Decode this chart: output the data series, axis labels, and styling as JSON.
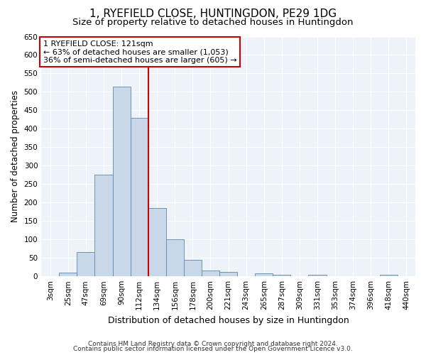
{
  "title1": "1, RYEFIELD CLOSE, HUNTINGDON, PE29 1DG",
  "title2": "Size of property relative to detached houses in Huntingdon",
  "xlabel": "Distribution of detached houses by size in Huntingdon",
  "ylabel": "Number of detached properties",
  "footer1": "Contains HM Land Registry data © Crown copyright and database right 2024.",
  "footer2": "Contains public sector information licensed under the Open Government Licence v3.0.",
  "annotation_line1": "1 RYEFIELD CLOSE: 121sqm",
  "annotation_line2": "← 63% of detached houses are smaller (1,053)",
  "annotation_line3": "36% of semi-detached houses are larger (605) →",
  "bar_labels": [
    "3sqm",
    "25sqm",
    "47sqm",
    "69sqm",
    "90sqm",
    "112sqm",
    "134sqm",
    "156sqm",
    "178sqm",
    "200sqm",
    "221sqm",
    "243sqm",
    "265sqm",
    "287sqm",
    "309sqm",
    "331sqm",
    "353sqm",
    "374sqm",
    "396sqm",
    "418sqm",
    "440sqm"
  ],
  "bar_values": [
    0,
    10,
    65,
    275,
    515,
    430,
    185,
    100,
    45,
    15,
    12,
    0,
    8,
    5,
    0,
    5,
    0,
    0,
    0,
    5,
    0
  ],
  "bar_color": "#c8d8e8",
  "bar_edge_color": "#5a8ab0",
  "ref_line_color": "#cc0000",
  "ylim": [
    0,
    650
  ],
  "yticks": [
    0,
    50,
    100,
    150,
    200,
    250,
    300,
    350,
    400,
    450,
    500,
    550,
    600,
    650
  ],
  "bg_color": "#eef2f9",
  "grid_color": "#ffffff",
  "annotation_box_color": "#cc0000",
  "title1_fontsize": 11,
  "title2_fontsize": 9.5,
  "tick_fontsize": 7.5,
  "ylabel_fontsize": 8.5,
  "xlabel_fontsize": 9,
  "annotation_fontsize": 8,
  "footer_fontsize": 6.5
}
